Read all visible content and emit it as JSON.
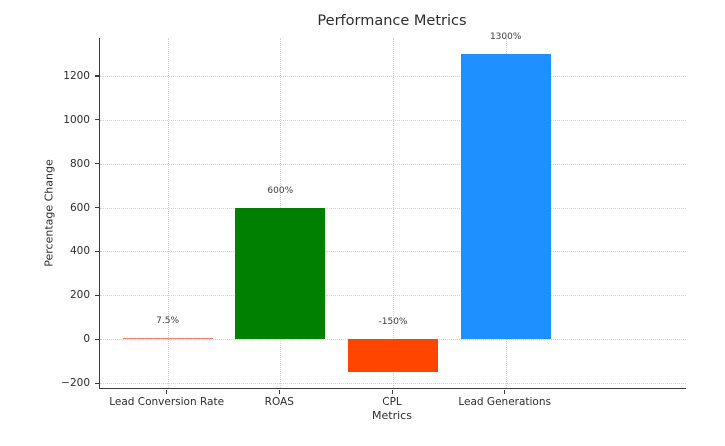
{
  "chart_data": {
    "type": "bar",
    "title": "Performance Metrics",
    "xlabel": "Metrics",
    "ylabel": "Percentage Change",
    "categories": [
      "Lead Conversion Rate",
      "ROAS",
      "CPL",
      "Lead Generations"
    ],
    "values": [
      7.5,
      600,
      -150,
      1300
    ],
    "bar_labels": [
      "7.5%",
      "600%",
      "-150%",
      "1300%"
    ],
    "bar_colors": [
      "#fa8072",
      "#008000",
      "#ff4500",
      "#1e90ff"
    ],
    "yticks": [
      -200,
      0,
      200,
      400,
      600,
      800,
      1000,
      1200
    ],
    "ylim": [
      -222.5,
      1372.5
    ],
    "grid": true,
    "grid_style": "dotted",
    "legend_position": "none",
    "colors": {
      "background": "#ffffff",
      "grid": "#d4d4d4",
      "spine": "#3b3b3b",
      "text": "#2e2e2e"
    }
  }
}
